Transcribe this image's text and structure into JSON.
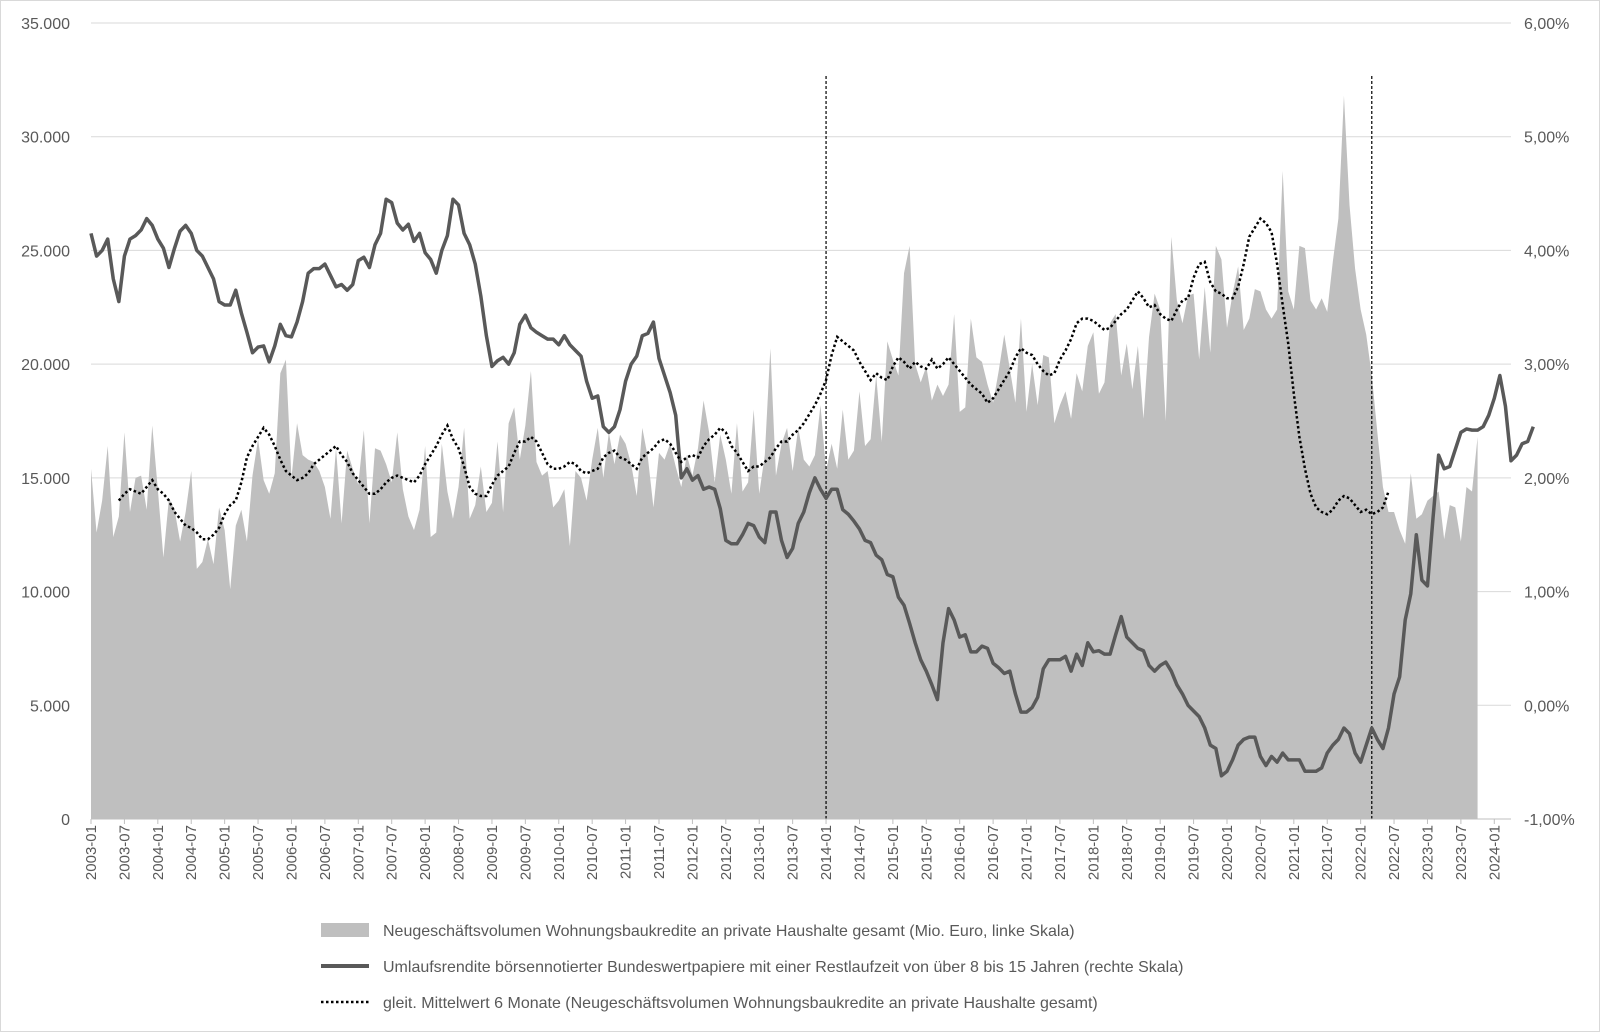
{
  "chart_data": {
    "type": "area+line",
    "title": "",
    "xlabel": "",
    "ylabel_left": "",
    "ylabel_right": "",
    "ylim_left": [
      0,
      35000
    ],
    "ylim_right": [
      -1.0,
      6.0
    ],
    "y_ticks_left": [
      "0",
      "5.000",
      "10.000",
      "15.000",
      "20.000",
      "25.000",
      "30.000",
      "35.000"
    ],
    "y_ticks_right": [
      "-1,00%",
      "0,00%",
      "1,00%",
      "2,00%",
      "3,00%",
      "4,00%",
      "5,00%",
      "6,00%"
    ],
    "x_start": "2003-01",
    "x_end": "2024-04",
    "x_tick_labels": [
      "2003-01",
      "2003-07",
      "2004-01",
      "2004-07",
      "2005-01",
      "2005-07",
      "2006-01",
      "2006-07",
      "2007-01",
      "2007-07",
      "2008-01",
      "2008-07",
      "2009-01",
      "2009-07",
      "2010-01",
      "2010-07",
      "2011-01",
      "2011-07",
      "2012-01",
      "2012-07",
      "2013-01",
      "2013-07",
      "2014-01",
      "2014-07",
      "2015-01",
      "2015-07",
      "2016-01",
      "2016-07",
      "2017-01",
      "2017-07",
      "2018-01",
      "2018-07",
      "2019-01",
      "2019-07",
      "2020-01",
      "2020-07",
      "2021-01",
      "2021-07",
      "2022-01",
      "2022-07",
      "2023-01",
      "2023-07",
      "2024-01"
    ],
    "vertical_markers": [
      "2014-01",
      "2022-03"
    ],
    "grid": "horizontal",
    "legend_position": "bottom",
    "series": [
      {
        "name": "Neugeschäftsvolumen Wohnungsbaukredite an private Haushalte gesamt (Mio. Euro, linke Skala)",
        "type": "area",
        "axis": "left",
        "color": "#bfbfbf",
        "values": [
          15400,
          12600,
          14000,
          16400,
          12400,
          13300,
          17000,
          13500,
          15000,
          15100,
          13600,
          17300,
          14500,
          11500,
          14100,
          13600,
          12200,
          13500,
          15300,
          11000,
          11300,
          12300,
          11200,
          13700,
          12700,
          10100,
          12900,
          13600,
          12200,
          15100,
          16700,
          14900,
          14300,
          15200,
          19600,
          20200,
          15000,
          17400,
          16000,
          15800,
          15700,
          15300,
          14600,
          13200,
          16300,
          13000,
          16200,
          15400,
          14700,
          17100,
          13000,
          16300,
          16200,
          15600,
          14800,
          17000,
          14500,
          13300,
          12700,
          13600,
          16400,
          12400,
          12600,
          16500,
          14400,
          13200,
          14600,
          17200,
          13200,
          13800,
          15500,
          13500,
          13900,
          16600,
          13500,
          17400,
          18100,
          15800,
          17300,
          19700,
          15700,
          15100,
          15300,
          13700,
          14000,
          14500,
          12000,
          15300,
          15000,
          14000,
          15800,
          17200,
          15000,
          17000,
          15600,
          16900,
          16500,
          15600,
          14200,
          17200,
          15900,
          13700,
          16100,
          15800,
          16500,
          15500,
          14600,
          16000,
          15100,
          16300,
          18400,
          17000,
          14800,
          16900,
          15800,
          14300,
          17400,
          14400,
          14800,
          18000,
          14300,
          16000,
          20700,
          15100,
          16500,
          17200,
          15300,
          17200,
          15800,
          15500,
          16000,
          18200,
          15300,
          16500,
          15400,
          18000,
          15800,
          16200,
          18800,
          16400,
          16700,
          19500,
          16600,
          21000,
          20200,
          19500,
          24000,
          25200,
          20000,
          19200,
          19900,
          18400,
          19100,
          18600,
          19100,
          22200,
          17900,
          18100,
          22000,
          20300,
          20100,
          19100,
          18300,
          19700,
          21300,
          19800,
          18300,
          22000,
          17900,
          20000,
          18200,
          20400,
          20300,
          17400,
          18200,
          18800,
          17600,
          19600,
          18800,
          20800,
          21400,
          18700,
          19200,
          21800,
          22200,
          19500,
          20900,
          18900,
          20800,
          17600,
          21200,
          23100,
          22400,
          17500,
          25600,
          22800,
          21800,
          23000,
          23100,
          20200,
          23400,
          20500,
          25200,
          24600,
          21600,
          23100,
          24300,
          21500,
          22000,
          23300,
          23200,
          22400,
          22000,
          22400,
          28500,
          23200,
          22400,
          25200,
          25100,
          22800,
          22400,
          22900,
          22300,
          24500,
          26400,
          31800,
          27000,
          24200,
          22400,
          21300,
          19500,
          17000,
          14600,
          13500,
          13500,
          12700,
          12100,
          15200,
          13200,
          13400,
          14000,
          14200,
          14400,
          12300,
          13800,
          13700,
          12200,
          14600,
          14400,
          16800
        ]
      },
      {
        "name": "Umlaufsrendite börsennotierter Bundeswertpapiere mit einer Restlaufzeit von über 8 bis 15 Jahren (rechte Skala)",
        "type": "line",
        "axis": "right",
        "color": "#595959",
        "values": [
          4.15,
          3.95,
          4.0,
          4.1,
          3.75,
          3.55,
          3.95,
          4.1,
          4.13,
          4.18,
          4.28,
          4.22,
          4.1,
          4.02,
          3.85,
          4.02,
          4.17,
          4.22,
          4.15,
          4.0,
          3.95,
          3.85,
          3.75,
          3.55,
          3.52,
          3.52,
          3.65,
          3.45,
          3.28,
          3.1,
          3.15,
          3.16,
          3.02,
          3.16,
          3.35,
          3.25,
          3.24,
          3.37,
          3.55,
          3.8,
          3.84,
          3.84,
          3.88,
          3.78,
          3.68,
          3.7,
          3.65,
          3.7,
          3.91,
          3.94,
          3.85,
          4.05,
          4.15,
          4.45,
          4.42,
          4.24,
          4.18,
          4.23,
          4.08,
          4.15,
          3.98,
          3.92,
          3.8,
          4.0,
          4.13,
          4.45,
          4.4,
          4.15,
          4.05,
          3.88,
          3.6,
          3.25,
          2.98,
          3.03,
          3.06,
          3.0,
          3.1,
          3.35,
          3.43,
          3.32,
          3.28,
          3.25,
          3.22,
          3.22,
          3.17,
          3.25,
          3.17,
          3.12,
          3.07,
          2.85,
          2.7,
          2.72,
          2.45,
          2.4,
          2.45,
          2.6,
          2.85,
          3.0,
          3.07,
          3.25,
          3.27,
          3.37,
          3.05,
          2.9,
          2.75,
          2.55,
          2.0,
          2.08,
          1.98,
          2.02,
          1.9,
          1.92,
          1.9,
          1.73,
          1.45,
          1.42,
          1.42,
          1.5,
          1.6,
          1.58,
          1.48,
          1.43,
          1.7,
          1.7,
          1.45,
          1.3,
          1.38,
          1.6,
          1.7,
          1.87,
          2.0,
          1.9,
          1.82,
          1.9,
          1.9,
          1.72,
          1.68,
          1.62,
          1.55,
          1.45,
          1.43,
          1.32,
          1.28,
          1.15,
          1.13,
          0.95,
          0.88,
          0.72,
          0.55,
          0.4,
          0.3,
          0.18,
          0.05,
          0.55,
          0.85,
          0.75,
          0.6,
          0.62,
          0.47,
          0.47,
          0.52,
          0.5,
          0.37,
          0.33,
          0.28,
          0.3,
          0.1,
          -0.06,
          -0.06,
          -0.02,
          0.07,
          0.32,
          0.4,
          0.4,
          0.4,
          0.43,
          0.3,
          0.45,
          0.35,
          0.55,
          0.47,
          0.48,
          0.45,
          0.45,
          0.62,
          0.78,
          0.6,
          0.55,
          0.5,
          0.48,
          0.35,
          0.3,
          0.35,
          0.38,
          0.3,
          0.18,
          0.1,
          0.0,
          -0.05,
          -0.1,
          -0.2,
          -0.35,
          -0.38,
          -0.62,
          -0.58,
          -0.48,
          -0.35,
          -0.3,
          -0.28,
          -0.28,
          -0.45,
          -0.53,
          -0.45,
          -0.5,
          -0.42,
          -0.48,
          -0.48,
          -0.48,
          -0.58,
          -0.58,
          -0.58,
          -0.55,
          -0.42,
          -0.35,
          -0.3,
          -0.2,
          -0.25,
          -0.42,
          -0.5,
          -0.35,
          -0.2,
          -0.3,
          -0.38,
          -0.2,
          0.1,
          0.25,
          0.75,
          0.98,
          1.5,
          1.1,
          1.05,
          1.65,
          2.2,
          2.08,
          2.1,
          2.25,
          2.4,
          2.43,
          2.42,
          2.42,
          2.45,
          2.55,
          2.7,
          2.9,
          2.63,
          2.15,
          2.2,
          2.3,
          2.32,
          2.45
        ]
      },
      {
        "name": "gleit. Mittelwert 6 Monate (Neugeschäftsvolumen Wohnungsbaukredite an private Haushalte gesamt)",
        "type": "line",
        "style": "dotted",
        "axis": "left",
        "color": "#000000",
        "start": "2003-06",
        "values": [
          14000,
          14300,
          14500,
          14400,
          14300,
          14600,
          14900,
          14500,
          14300,
          14000,
          13500,
          13200,
          12900,
          12800,
          12600,
          12300,
          12300,
          12500,
          12800,
          13400,
          13800,
          14000,
          14800,
          15900,
          16400,
          16800,
          17200,
          16900,
          16400,
          15800,
          15300,
          15100,
          14900,
          15000,
          15200,
          15600,
          15800,
          16000,
          16200,
          16400,
          16000,
          15700,
          15200,
          14900,
          14600,
          14300,
          14300,
          14500,
          14800,
          15000,
          15100,
          15000,
          14900,
          14800,
          15100,
          15600,
          16000,
          16400,
          16900,
          17300,
          16700,
          16300,
          15500,
          14600,
          14300,
          14200,
          14200,
          14700,
          15100,
          15300,
          15500,
          16100,
          16600,
          16600,
          16800,
          16600,
          16100,
          15600,
          15400,
          15400,
          15500,
          15700,
          15600,
          15300,
          15200,
          15300,
          15400,
          15900,
          16100,
          16200,
          15900,
          15800,
          15600,
          15400,
          15900,
          16100,
          16300,
          16600,
          16700,
          16500,
          16100,
          15700,
          15900,
          16000,
          15900,
          16400,
          16700,
          16900,
          17200,
          17000,
          16400,
          16100,
          15700,
          15300,
          15500,
          15500,
          15700,
          15900,
          16300,
          16600,
          16600,
          16900,
          17100,
          17400,
          17800,
          18200,
          18700,
          19300,
          20400,
          21200,
          21000,
          20800,
          20600,
          20100,
          19700,
          19300,
          19600,
          19400,
          19300,
          19900,
          20300,
          20100,
          19800,
          20100,
          19900,
          19800,
          20200,
          19800,
          20000,
          20300,
          20000,
          19700,
          19400,
          19100,
          18900,
          18700,
          18300,
          18500,
          18900,
          19300,
          19700,
          20300,
          20700,
          20500,
          20400,
          20000,
          19700,
          19500,
          19600,
          20200,
          20600,
          21100,
          21800,
          22000,
          22000,
          21900,
          21700,
          21500,
          21600,
          21900,
          22200,
          22400,
          22800,
          23200,
          22900,
          22500,
          22600,
          22200,
          22000,
          21900,
          22400,
          22800,
          22900,
          23800,
          24400,
          24500,
          23600,
          23200,
          23100,
          22900,
          22900,
          23400,
          24400,
          25600,
          26000,
          26400,
          26200,
          25800,
          24400,
          22600,
          20900,
          18700,
          16800,
          15400,
          14300,
          13700,
          13500,
          13400,
          13600,
          14000,
          14200,
          14100,
          13800,
          13500,
          13600,
          13400,
          13500,
          13700,
          14400
        ]
      }
    ]
  },
  "legend": [
    {
      "label": "Neugeschäftsvolumen Wohnungsbaukredite an private Haushalte gesamt (Mio. Euro, linke Skala)"
    },
    {
      "label": "Umlaufsrendite börsennotierter Bundeswertpapiere mit einer Restlaufzeit von über 8 bis 15 Jahren (rechte Skala)"
    },
    {
      "label": "gleit. Mittelwert 6 Monate (Neugeschäftsvolumen Wohnungsbaukredite an private Haushalte gesamt)"
    }
  ]
}
